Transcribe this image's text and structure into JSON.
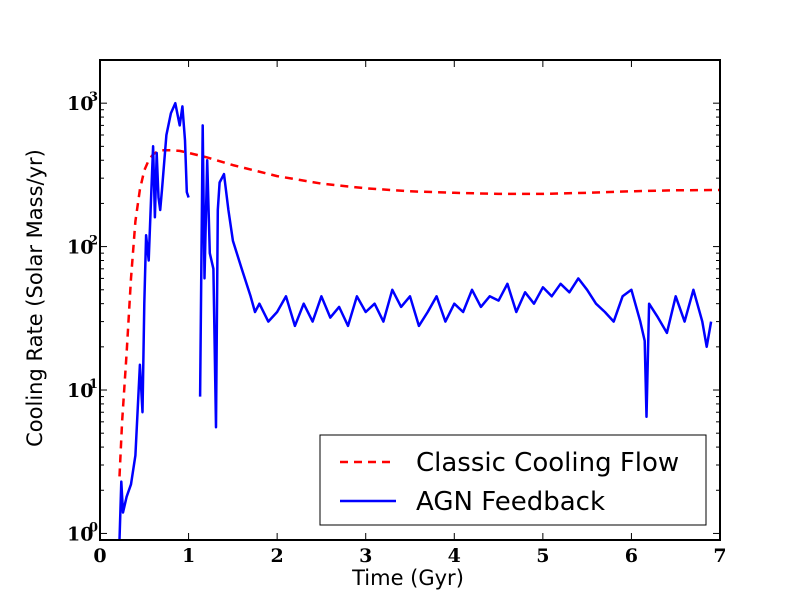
{
  "chart_data": {
    "type": "line",
    "title": "",
    "xlabel": "Time (Gyr)",
    "ylabel": "Cooling Rate (Solar Mass/yr)",
    "xlim": [
      0,
      7
    ],
    "ylim": [
      0.9,
      2000
    ],
    "yscale": "log",
    "grid": false,
    "legend_position": "lower-right",
    "x_ticks": [
      {
        "value": 0,
        "label": "0"
      },
      {
        "value": 1,
        "label": "1"
      },
      {
        "value": 2,
        "label": "2"
      },
      {
        "value": 3,
        "label": "3"
      },
      {
        "value": 4,
        "label": "4"
      },
      {
        "value": 5,
        "label": "5"
      },
      {
        "value": 6,
        "label": "6"
      },
      {
        "value": 7,
        "label": "7"
      }
    ],
    "y_ticks": [
      {
        "value": 1,
        "base": "10",
        "exp": "0"
      },
      {
        "value": 10,
        "base": "10",
        "exp": "1"
      },
      {
        "value": 100,
        "base": "10",
        "exp": "2"
      },
      {
        "value": 1000,
        "base": "10",
        "exp": "3"
      }
    ],
    "series": [
      {
        "name": "Classic Cooling Flow",
        "color": "#ff0000",
        "style": "dashed",
        "x": [
          0.22,
          0.25,
          0.3,
          0.35,
          0.4,
          0.45,
          0.5,
          0.55,
          0.6,
          0.65,
          0.7,
          0.8,
          0.9,
          1.0,
          1.2,
          1.5,
          2.0,
          2.5,
          3.0,
          3.5,
          4.0,
          4.5,
          5.0,
          5.5,
          6.0,
          6.5,
          7.0
        ],
        "values": [
          2.5,
          6,
          18,
          60,
          150,
          250,
          340,
          400,
          440,
          460,
          470,
          470,
          465,
          450,
          420,
          370,
          310,
          275,
          255,
          243,
          237,
          233,
          233,
          237,
          243,
          247,
          248
        ]
      },
      {
        "name": "AGN Feedback",
        "color": "#0000ff",
        "style": "solid",
        "x": [
          0.22,
          0.24,
          0.26,
          0.3,
          0.35,
          0.4,
          0.45,
          0.48,
          0.5,
          0.52,
          0.55,
          0.58,
          0.6,
          0.62,
          0.64,
          0.66,
          0.68,
          0.7,
          0.75,
          0.8,
          0.85,
          0.9,
          0.93,
          0.96,
          0.98,
          1.0
        ],
        "values": [
          0.9,
          2.3,
          1.4,
          1.8,
          2.2,
          3.5,
          15,
          7,
          40,
          120,
          80,
          250,
          500,
          160,
          450,
          220,
          180,
          250,
          600,
          850,
          1000,
          700,
          950,
          550,
          240,
          220
        ],
        "segments": [
          {
            "x": [
              1.13,
              1.16,
              1.18,
              1.21,
              1.24,
              1.28,
              1.31,
              1.33,
              1.35,
              1.4,
              1.45,
              1.5,
              1.6,
              1.7,
              1.75,
              1.8,
              1.9,
              2.0,
              2.1,
              2.2,
              2.3,
              2.4,
              2.5,
              2.6,
              2.7,
              2.8,
              2.9,
              3.0,
              3.1,
              3.2,
              3.3,
              3.4,
              3.5,
              3.6,
              3.7,
              3.8,
              3.9,
              4.0,
              4.1,
              4.2,
              4.3,
              4.4,
              4.5,
              4.6,
              4.7,
              4.8,
              4.9,
              5.0,
              5.1,
              5.2,
              5.3,
              5.4,
              5.5,
              5.6,
              5.7,
              5.8,
              5.9,
              6.0,
              6.1,
              6.15,
              6.17,
              6.2,
              6.3,
              6.4,
              6.5,
              6.6,
              6.7,
              6.8,
              6.85,
              6.9
            ],
            "values": [
              9,
              700,
              60,
              400,
              90,
              70,
              5.5,
              180,
              280,
              320,
              180,
              110,
              70,
              45,
              35,
              40,
              30,
              35,
              45,
              28,
              40,
              30,
              45,
              32,
              38,
              28,
              45,
              35,
              40,
              30,
              50,
              38,
              45,
              28,
              35,
              45,
              30,
              40,
              35,
              50,
              38,
              45,
              42,
              55,
              35,
              48,
              40,
              52,
              45,
              55,
              48,
              60,
              50,
              40,
              35,
              30,
              45,
              50,
              30,
              22,
              6.5,
              40,
              32,
              25,
              45,
              30,
              50,
              30,
              20,
              30
            ]
          }
        ]
      }
    ]
  }
}
